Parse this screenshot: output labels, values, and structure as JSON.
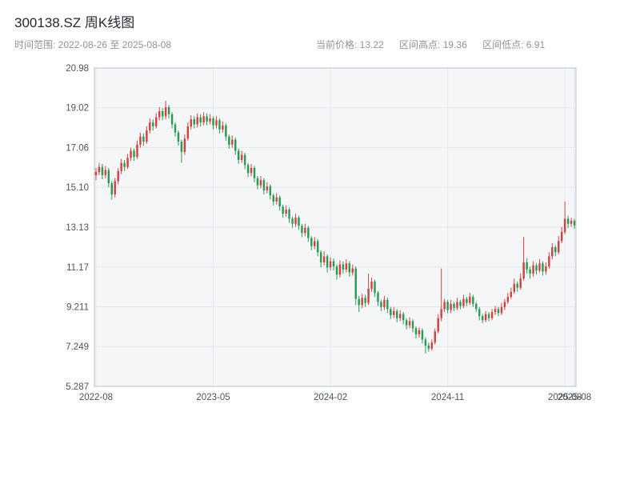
{
  "header": {
    "title": "300138.SZ 周K线图",
    "range_label": "时间范围: 2022-08-26 至 2025-08-08",
    "stats": [
      "当前价格: 13.22",
      "区间高点: 19.36",
      "区间低点: 6.91"
    ]
  },
  "chart_data": {
    "type": "candlestick",
    "title": "300138.SZ 周K线图",
    "symbol": "300138.SZ",
    "interval": "weekly",
    "date_start": "2022-08-26",
    "date_end": "2025-08-08",
    "current_price": 13.22,
    "range_high": 19.36,
    "range_low": 6.91,
    "ylim": [
      5.287,
      20.98
    ],
    "grid": true,
    "colors": {
      "up": "#d1433e",
      "down": "#2a9b52",
      "plot_bg": "#f4f6f8",
      "grid_line": "#e4e8ee",
      "border": "#bcc0c6",
      "tick_text": "#4d535b"
    },
    "y_ticks": [
      {
        "value": 20.98,
        "label": "20.98"
      },
      {
        "value": 19.02,
        "label": "19.02"
      },
      {
        "value": 17.06,
        "label": "17.06"
      },
      {
        "value": 15.1,
        "label": "15.10"
      },
      {
        "value": 13.13,
        "label": "13.13"
      },
      {
        "value": 11.17,
        "label": "11.17"
      },
      {
        "value": 9.211,
        "label": "9.211"
      },
      {
        "value": 7.249,
        "label": "7.249"
      },
      {
        "value": 5.287,
        "label": "5.287"
      }
    ],
    "x_ticks": [
      {
        "index": 0,
        "label": "2022-08"
      },
      {
        "index": 37,
        "label": "2023-05"
      },
      {
        "index": 74,
        "label": "2024-02"
      },
      {
        "index": 111,
        "label": "2024-11"
      },
      {
        "index": 148,
        "label": "2025-08"
      },
      {
        "index": 151,
        "label": "2025-08"
      }
    ],
    "candles": [
      [
        15.7,
        16.05,
        15.45,
        15.85
      ],
      [
        15.85,
        16.3,
        15.7,
        16.1
      ],
      [
        16.1,
        16.25,
        15.5,
        15.7
      ],
      [
        15.7,
        16.15,
        15.55,
        15.95
      ],
      [
        15.95,
        16.05,
        15.1,
        15.3
      ],
      [
        15.3,
        15.4,
        14.5,
        14.75
      ],
      [
        14.75,
        15.55,
        14.6,
        15.4
      ],
      [
        15.4,
        16.05,
        15.25,
        15.9
      ],
      [
        15.9,
        16.5,
        15.75,
        16.3
      ],
      [
        16.3,
        16.45,
        15.9,
        16.1
      ],
      [
        16.1,
        16.75,
        16.0,
        16.55
      ],
      [
        16.55,
        17.05,
        16.4,
        16.9
      ],
      [
        16.9,
        17.0,
        16.4,
        16.6
      ],
      [
        16.6,
        17.4,
        16.5,
        17.2
      ],
      [
        17.2,
        17.8,
        17.05,
        17.6
      ],
      [
        17.6,
        17.75,
        17.15,
        17.35
      ],
      [
        17.35,
        18.1,
        17.25,
        17.9
      ],
      [
        17.9,
        18.5,
        17.75,
        18.3
      ],
      [
        18.3,
        18.45,
        17.9,
        18.1
      ],
      [
        18.1,
        18.75,
        18.0,
        18.55
      ],
      [
        18.55,
        19.05,
        18.4,
        18.85
      ],
      [
        18.85,
        19.0,
        18.4,
        18.6
      ],
      [
        18.6,
        19.36,
        18.45,
        19.05
      ],
      [
        19.05,
        19.15,
        18.5,
        18.7
      ],
      [
        18.7,
        18.8,
        18.0,
        18.2
      ],
      [
        18.2,
        18.3,
        17.6,
        17.8
      ],
      [
        17.8,
        17.9,
        17.15,
        17.35
      ],
      [
        17.35,
        17.45,
        16.3,
        16.85
      ],
      [
        16.85,
        17.7,
        16.7,
        17.5
      ],
      [
        17.5,
        18.3,
        17.4,
        18.1
      ],
      [
        18.1,
        18.65,
        17.95,
        18.45
      ],
      [
        18.45,
        18.6,
        18.0,
        18.2
      ],
      [
        18.2,
        18.75,
        18.05,
        18.55
      ],
      [
        18.55,
        18.7,
        18.1,
        18.3
      ],
      [
        18.3,
        18.8,
        18.15,
        18.6
      ],
      [
        18.6,
        18.75,
        18.15,
        18.35
      ],
      [
        18.35,
        18.7,
        18.2,
        18.5
      ],
      [
        18.5,
        18.6,
        17.95,
        18.15
      ],
      [
        18.15,
        18.6,
        18.0,
        18.4
      ],
      [
        18.4,
        18.5,
        17.75,
        17.95
      ],
      [
        17.95,
        18.35,
        17.8,
        18.15
      ],
      [
        18.15,
        18.25,
        17.4,
        17.6
      ],
      [
        17.6,
        17.7,
        17.0,
        17.2
      ],
      [
        17.2,
        17.65,
        17.05,
        17.45
      ],
      [
        17.45,
        17.55,
        16.7,
        16.9
      ],
      [
        16.9,
        17.0,
        16.25,
        16.45
      ],
      [
        16.45,
        16.9,
        16.3,
        16.7
      ],
      [
        16.7,
        16.8,
        16.0,
        16.2
      ],
      [
        16.2,
        16.3,
        15.6,
        15.8
      ],
      [
        15.8,
        16.25,
        15.65,
        16.05
      ],
      [
        16.05,
        16.15,
        15.35,
        15.55
      ],
      [
        15.55,
        15.65,
        15.0,
        15.2
      ],
      [
        15.2,
        15.65,
        15.05,
        15.45
      ],
      [
        15.45,
        15.55,
        14.75,
        14.95
      ],
      [
        14.95,
        15.35,
        14.8,
        15.15
      ],
      [
        15.15,
        15.25,
        14.5,
        14.7
      ],
      [
        14.7,
        14.8,
        14.2,
        14.4
      ],
      [
        14.4,
        14.8,
        14.25,
        14.6
      ],
      [
        14.6,
        14.7,
        13.95,
        14.15
      ],
      [
        14.15,
        14.25,
        13.6,
        13.8
      ],
      [
        13.8,
        14.2,
        13.65,
        14.0
      ],
      [
        14.0,
        14.1,
        13.35,
        13.55
      ],
      [
        13.55,
        13.65,
        13.1,
        13.3
      ],
      [
        13.3,
        13.8,
        13.15,
        13.6
      ],
      [
        13.6,
        13.7,
        13.0,
        13.2
      ],
      [
        13.2,
        13.3,
        12.65,
        12.85
      ],
      [
        12.85,
        13.3,
        12.7,
        13.1
      ],
      [
        13.1,
        13.2,
        12.4,
        12.6
      ],
      [
        12.6,
        12.7,
        12.0,
        12.2
      ],
      [
        12.2,
        12.65,
        12.05,
        12.45
      ],
      [
        12.45,
        12.55,
        11.7,
        11.9
      ],
      [
        11.9,
        12.0,
        11.15,
        11.4
      ],
      [
        11.4,
        11.95,
        11.25,
        11.7
      ],
      [
        11.7,
        11.8,
        10.9,
        11.15
      ],
      [
        11.15,
        11.65,
        11.0,
        11.45
      ],
      [
        11.45,
        11.6,
        11.0,
        11.2
      ],
      [
        11.2,
        11.3,
        10.55,
        10.8
      ],
      [
        10.8,
        11.5,
        10.65,
        11.3
      ],
      [
        11.3,
        11.45,
        10.85,
        11.05
      ],
      [
        11.05,
        11.55,
        10.9,
        11.35
      ],
      [
        11.35,
        11.45,
        10.7,
        10.9
      ],
      [
        10.9,
        11.3,
        10.75,
        11.1
      ],
      [
        11.1,
        11.2,
        9.3,
        9.6
      ],
      [
        9.6,
        9.75,
        8.95,
        9.3
      ],
      [
        9.3,
        9.85,
        9.15,
        9.65
      ],
      [
        9.65,
        9.8,
        9.2,
        9.4
      ],
      [
        9.4,
        10.85,
        9.3,
        10.1
      ],
      [
        10.1,
        10.65,
        9.95,
        10.45
      ],
      [
        10.45,
        10.55,
        9.7,
        9.9
      ],
      [
        9.9,
        10.0,
        9.25,
        9.45
      ],
      [
        9.45,
        9.55,
        9.0,
        9.2
      ],
      [
        9.2,
        9.75,
        9.05,
        9.55
      ],
      [
        9.55,
        9.65,
        8.9,
        9.1
      ],
      [
        9.1,
        9.2,
        8.6,
        8.8
      ],
      [
        8.8,
        9.2,
        8.65,
        9.0
      ],
      [
        9.0,
        9.1,
        8.45,
        8.65
      ],
      [
        8.65,
        9.05,
        8.5,
        8.85
      ],
      [
        8.85,
        8.95,
        8.35,
        8.55
      ],
      [
        8.55,
        8.65,
        8.1,
        8.3
      ],
      [
        8.3,
        8.7,
        8.15,
        8.5
      ],
      [
        8.5,
        8.6,
        7.95,
        8.15
      ],
      [
        8.15,
        8.25,
        7.65,
        7.85
      ],
      [
        7.85,
        8.2,
        7.7,
        8.05
      ],
      [
        8.05,
        8.15,
        7.4,
        7.6
      ],
      [
        7.6,
        7.7,
        6.91,
        7.3
      ],
      [
        7.3,
        7.45,
        7.0,
        7.15
      ],
      [
        7.15,
        7.6,
        7.05,
        7.45
      ],
      [
        7.45,
        8.15,
        7.35,
        8.0
      ],
      [
        8.0,
        8.85,
        7.9,
        8.65
      ],
      [
        8.65,
        11.1,
        8.5,
        9.1
      ],
      [
        9.1,
        9.6,
        8.95,
        9.45
      ],
      [
        9.45,
        9.55,
        8.9,
        9.05
      ],
      [
        9.05,
        9.55,
        8.9,
        9.35
      ],
      [
        9.35,
        9.45,
        9.0,
        9.15
      ],
      [
        9.15,
        9.65,
        9.05,
        9.45
      ],
      [
        9.45,
        9.55,
        9.1,
        9.25
      ],
      [
        9.25,
        9.8,
        9.15,
        9.6
      ],
      [
        9.6,
        9.7,
        9.25,
        9.4
      ],
      [
        9.4,
        9.9,
        9.3,
        9.7
      ],
      [
        9.7,
        9.8,
        9.2,
        9.35
      ],
      [
        9.35,
        9.45,
        8.95,
        9.1
      ],
      [
        9.1,
        9.2,
        8.55,
        8.75
      ],
      [
        8.75,
        8.85,
        8.4,
        8.55
      ],
      [
        8.55,
        9.0,
        8.45,
        8.85
      ],
      [
        8.85,
        8.95,
        8.5,
        8.65
      ],
      [
        8.65,
        9.1,
        8.55,
        8.95
      ],
      [
        8.95,
        9.25,
        8.8,
        9.1
      ],
      [
        9.1,
        9.2,
        8.75,
        8.9
      ],
      [
        8.9,
        9.4,
        8.8,
        9.2
      ],
      [
        9.2,
        9.6,
        9.05,
        9.45
      ],
      [
        9.45,
        9.9,
        9.35,
        9.7
      ],
      [
        9.7,
        10.15,
        9.6,
        9.95
      ],
      [
        9.95,
        10.6,
        9.85,
        10.35
      ],
      [
        10.35,
        10.45,
        9.95,
        10.15
      ],
      [
        10.15,
        10.85,
        10.05,
        10.6
      ],
      [
        10.6,
        12.65,
        10.5,
        11.4
      ],
      [
        11.4,
        11.6,
        10.85,
        11.05
      ],
      [
        11.05,
        11.2,
        10.6,
        10.85
      ],
      [
        10.85,
        11.45,
        10.7,
        11.25
      ],
      [
        11.25,
        11.35,
        10.8,
        11.0
      ],
      [
        11.0,
        11.55,
        10.9,
        11.35
      ],
      [
        11.35,
        11.45,
        10.75,
        10.95
      ],
      [
        10.95,
        11.4,
        10.8,
        11.2
      ],
      [
        11.2,
        11.9,
        11.1,
        11.7
      ],
      [
        11.7,
        12.35,
        11.55,
        12.15
      ],
      [
        12.15,
        12.25,
        11.7,
        11.9
      ],
      [
        11.9,
        12.7,
        11.8,
        12.45
      ],
      [
        12.45,
        13.15,
        12.35,
        12.9
      ],
      [
        12.9,
        14.4,
        12.8,
        13.55
      ],
      [
        13.55,
        13.7,
        13.1,
        13.3
      ],
      [
        13.3,
        13.6,
        13.15,
        13.45
      ],
      [
        13.45,
        13.55,
        13.05,
        13.22
      ]
    ]
  }
}
